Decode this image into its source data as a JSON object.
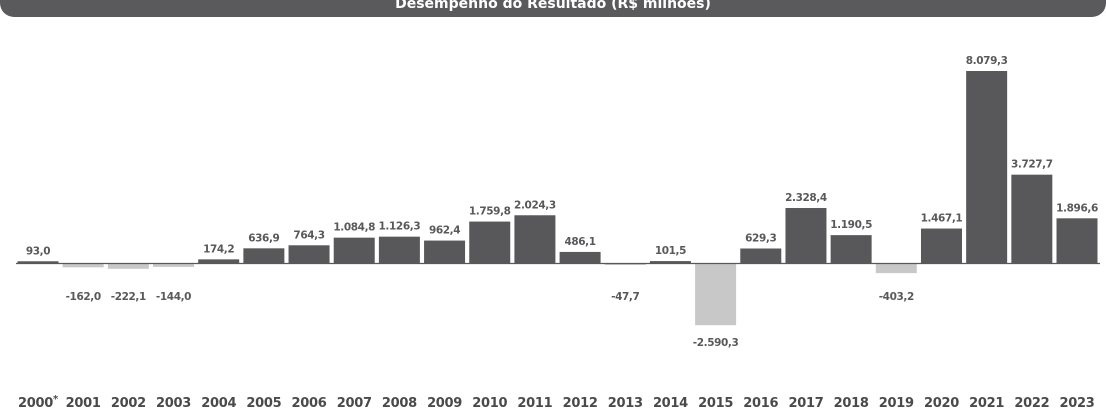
{
  "chart_data": {
    "type": "bar",
    "title": "Desempenho do Resultado (R$ milhões)",
    "categories": [
      "2000*",
      "2001",
      "2002",
      "2003",
      "2004",
      "2005",
      "2006",
      "2007",
      "2008",
      "2009",
      "2010",
      "2011",
      "2012",
      "2013",
      "2014",
      "2015",
      "2016",
      "2017",
      "2018",
      "2019",
      "2020",
      "2021",
      "2022",
      "2023"
    ],
    "values": [
      93.0,
      -162.0,
      -222.1,
      -144.0,
      174.2,
      636.9,
      764.3,
      1084.8,
      1126.3,
      962.4,
      1759.8,
      2024.3,
      486.1,
      -47.7,
      101.5,
      -2590.3,
      629.3,
      2328.4,
      1190.5,
      -403.2,
      1467.1,
      8079.3,
      3727.7,
      1896.6
    ],
    "value_labels": [
      "93,0",
      "-162,0",
      "-222,1",
      "-144,0",
      "174,2",
      "636,9",
      "764,3",
      "1.084,8",
      "1.126,3",
      "962,4",
      "1.759,8",
      "2.024,3",
      "486,1",
      "-47,7",
      "101,5",
      "-2.590,3",
      "629,3",
      "2.328,4",
      "1.190,5",
      "-403,2",
      "1.467,1",
      "8.079,3",
      "3.727,7",
      "1.896,6"
    ],
    "colors": {
      "positive": "#58585a",
      "negative": "#c8c8c8",
      "banner": "#5a5a5c",
      "baseline": "#58585a"
    },
    "xlabel": "",
    "ylabel": "",
    "ylim": [
      -2590.3,
      8079.3
    ],
    "grid": false,
    "legend": "none"
  }
}
